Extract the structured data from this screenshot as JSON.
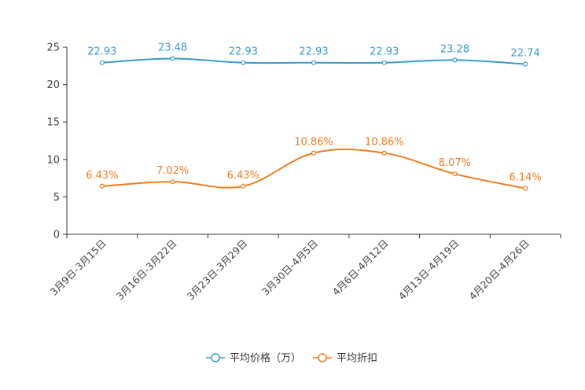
{
  "chart_data": {
    "type": "line",
    "categories": [
      "3月9日-3月15日",
      "3月16日-3月22日",
      "3月23日-3月29日",
      "3月30日-4月5日",
      "4月6日-4月12日",
      "4月13日-4月19日",
      "4月20日-4月26日"
    ],
    "series": [
      {
        "name": "平均价格（万）",
        "color": "#3a9ad0",
        "values": [
          22.93,
          23.48,
          22.93,
          22.93,
          22.93,
          23.28,
          22.74
        ],
        "labels": [
          "22.93",
          "23.48",
          "22.93",
          "22.93",
          "22.93",
          "23.28",
          "22.74"
        ]
      },
      {
        "name": "平均折扣",
        "color": "#f07c1e",
        "values": [
          6.43,
          7.02,
          6.43,
          10.86,
          10.86,
          8.07,
          6.14
        ],
        "labels": [
          "6.43%",
          "7.02%",
          "6.43%",
          "10.86%",
          "10.86%",
          "8.07%",
          "6.14%"
        ]
      }
    ],
    "ylim": [
      0,
      25
    ],
    "yticks": [
      0,
      5,
      10,
      15,
      20,
      25
    ],
    "legend_position": "bottom-center",
    "grid": false,
    "title": "",
    "xlabel": "",
    "ylabel": ""
  }
}
